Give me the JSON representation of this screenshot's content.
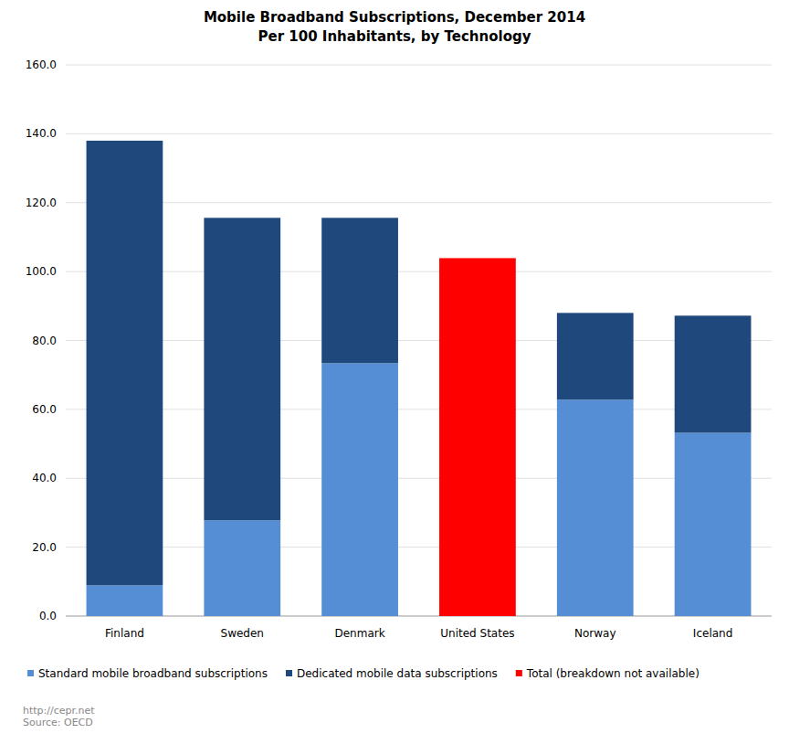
{
  "chart_data": {
    "type": "bar",
    "title": "Mobile Broadband Subscriptions,  December 2014",
    "subtitle": "Per 100 Inhabitants,  by Technology",
    "categories": [
      "Finland",
      "Sweden",
      "Denmark",
      "United States",
      "Norway",
      "Iceland"
    ],
    "series": [
      {
        "name": "Standard mobile broadband subscriptions",
        "color": "#558ed5",
        "values": [
          8.9,
          27.8,
          73.4,
          null,
          62.8,
          53.2
        ]
      },
      {
        "name": "Dedicated mobile data subscriptions",
        "color": "#1f497d",
        "values": [
          129.1,
          87.8,
          42.2,
          null,
          25.2,
          34.0
        ]
      },
      {
        "name": "Total (breakdown not available)",
        "color": "#ff0000",
        "values": [
          null,
          null,
          null,
          103.9,
          null,
          null
        ]
      }
    ],
    "stacked": true,
    "ylim": [
      0,
      160
    ],
    "yticks": [
      {
        "value": 0,
        "label": "0.0"
      },
      {
        "value": 20,
        "label": "20.0"
      },
      {
        "value": 40,
        "label": "40.0"
      },
      {
        "value": 60,
        "label": "60.0"
      },
      {
        "value": 80,
        "label": "80.0"
      },
      {
        "value": 100,
        "label": "100.0"
      },
      {
        "value": 120,
        "label": "120.0"
      },
      {
        "value": 140,
        "label": "140.0"
      },
      {
        "value": 160,
        "label": "160.0"
      }
    ],
    "grid": true,
    "legend": "bottom",
    "annotations": [
      "http://cepr.net",
      "Source: OECD"
    ]
  }
}
